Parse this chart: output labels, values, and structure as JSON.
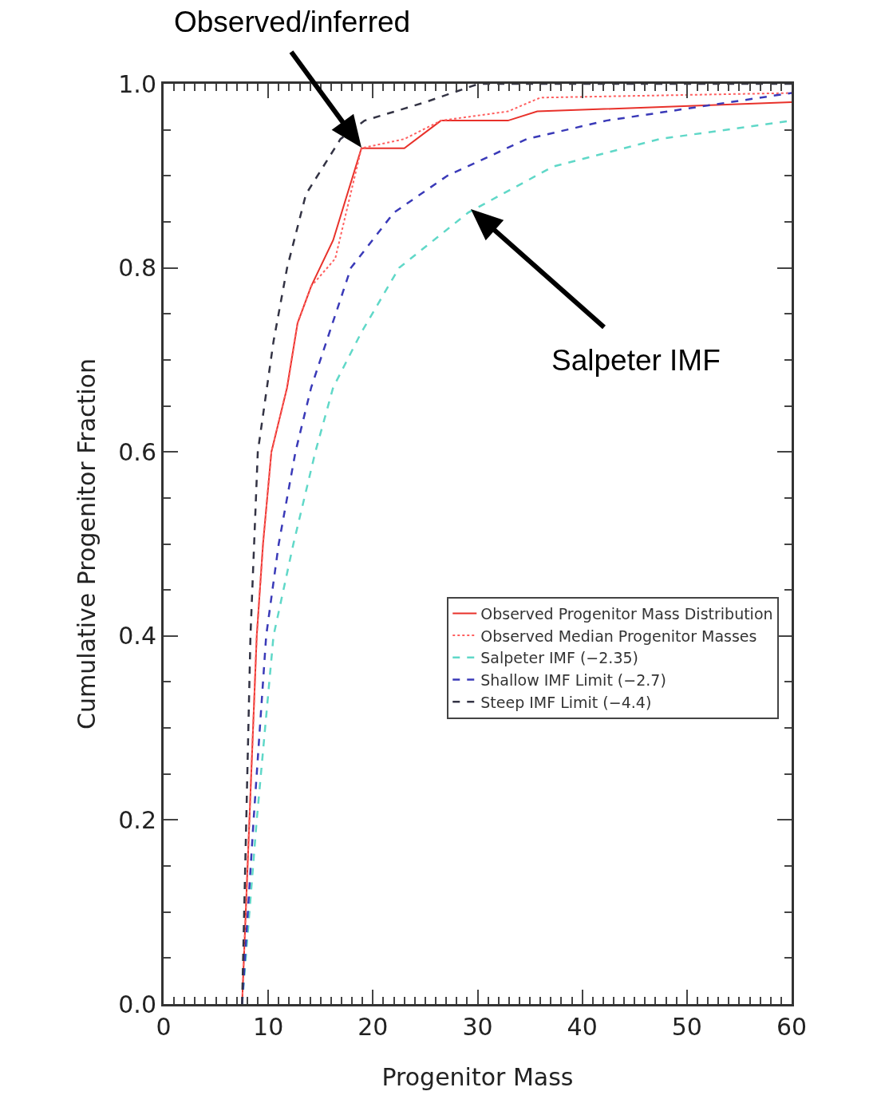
{
  "chart_data": {
    "type": "line",
    "xlabel": "Progenitor Mass",
    "ylabel": "Cumulative Progenitor Fraction",
    "xlim": [
      0,
      60
    ],
    "xticks": [
      0,
      10,
      20,
      30,
      40,
      50,
      60
    ],
    "ylim": [
      0,
      1
    ],
    "yticks": [
      {
        "value": 0,
        "label": "0.0"
      },
      {
        "value": 0.2,
        "label": "0.2"
      },
      {
        "value": 0.4,
        "label": "0.4"
      },
      {
        "value": 0.6,
        "label": "0.6"
      },
      {
        "value": 0.8,
        "label": "0.8"
      },
      {
        "value": 1,
        "label": "1.0"
      }
    ],
    "grid": false,
    "legend": "right",
    "marker": "none",
    "series": [
      {
        "name": "Observed Progenitor Mass Distribution",
        "color": "#e8312a",
        "line_style": "solid",
        "x": [
          7.5,
          8.2,
          8.9,
          9.5,
          10.3,
          11.8,
          12.8,
          14.1,
          16.2,
          18.9,
          23,
          26.5,
          32.9,
          35.7,
          60
        ],
        "values": [
          0,
          0.2,
          0.4,
          0.5,
          0.6,
          0.67,
          0.74,
          0.78,
          0.83,
          0.93,
          0.93,
          0.96,
          0.96,
          0.97,
          0.98
        ]
      },
      {
        "name": "Observed Median Progenitor Masses",
        "color": "#ff6060",
        "line_style": "dotted",
        "x": [
          7.5,
          8.2,
          8.9,
          9.5,
          10.3,
          11.8,
          12.8,
          14.1,
          16.4,
          18.9,
          23,
          26.5,
          32.9,
          36,
          60
        ],
        "values": [
          0,
          0.2,
          0.4,
          0.5,
          0.6,
          0.67,
          0.74,
          0.78,
          0.81,
          0.93,
          0.94,
          0.96,
          0.97,
          0.985,
          0.99
        ]
      },
      {
        "name": "Salpeter IMF (−2.35)",
        "color": "#60d8c8",
        "line_style": "dashed",
        "x": [
          7.5,
          8.9,
          10.5,
          12.4,
          14.5,
          16.2,
          18.9,
          22.5,
          29.1,
          37.2,
          47.4,
          60
        ],
        "values": [
          0,
          0.2,
          0.4,
          0.5,
          0.6,
          0.67,
          0.73,
          0.8,
          0.86,
          0.91,
          0.94,
          0.96
        ]
      },
      {
        "name": "Shallow IMF Limit (−2.7)",
        "color": "#3a3ab8",
        "line_style": "dashed",
        "x": [
          7.5,
          8.6,
          9.8,
          11,
          12.6,
          14.1,
          17.9,
          22,
          27.1,
          34.7,
          42.3,
          60
        ],
        "values": [
          0,
          0.2,
          0.4,
          0.5,
          0.6,
          0.67,
          0.8,
          0.86,
          0.9,
          0.94,
          0.96,
          0.99
        ]
      },
      {
        "name": "Steep IMF Limit (−4.4)",
        "color": "#333344",
        "line_style": "dashed",
        "x": [
          7.5,
          8.3,
          9,
          10.5,
          11.8,
          13.6,
          16.9,
          19.2,
          25,
          30.1,
          36,
          60
        ],
        "values": [
          0,
          0.4,
          0.6,
          0.72,
          0.8,
          0.88,
          0.94,
          0.96,
          0.98,
          1,
          1,
          1
        ]
      }
    ],
    "annotations": [
      "Observed/inferred",
      "Salpeter IMF"
    ]
  }
}
